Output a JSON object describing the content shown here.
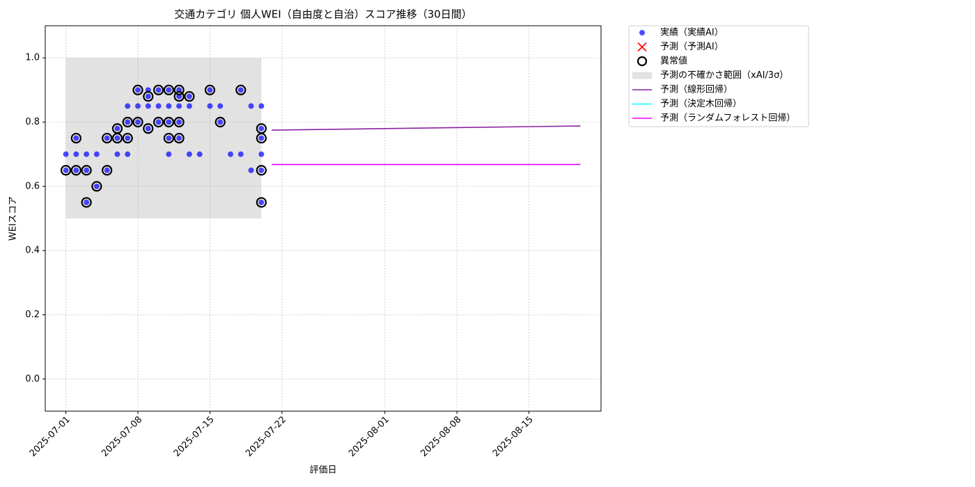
{
  "chart_data": {
    "type": "scatter",
    "title": "交通カテゴリ 個人WEI（自由度と自治）スコア推移（30日間）",
    "x_label": "評価日",
    "y_label": "WEIスコア",
    "xlim": [
      "2025-06-29",
      "2025-08-22"
    ],
    "ylim": [
      -0.1,
      1.1
    ],
    "xticks": [
      "2025-07-01",
      "2025-07-08",
      "2025-07-15",
      "2025-07-22",
      "2025-08-01",
      "2025-08-08",
      "2025-08-15"
    ],
    "yticks": [
      {
        "value": 0,
        "label": "0.0"
      },
      0.2,
      0.4,
      0.6,
      0.8,
      {
        "value": 1,
        "label": "1.0"
      }
    ],
    "grid": true,
    "legend": "outside upper right",
    "series": [
      {
        "name": "実績（実績AI）",
        "type": "scatter",
        "marker": "dot",
        "color": "#0000ff",
        "x": [
          "2025-07-01",
          "2025-07-01",
          "2025-07-02",
          "2025-07-02",
          "2025-07-02",
          "2025-07-03",
          "2025-07-03",
          "2025-07-03",
          "2025-07-04",
          "2025-07-04",
          "2025-07-05",
          "2025-07-05",
          "2025-07-06",
          "2025-07-06",
          "2025-07-06",
          "2025-07-07",
          "2025-07-07",
          "2025-07-07",
          "2025-07-07",
          "2025-07-08",
          "2025-07-08",
          "2025-07-08",
          "2025-07-09",
          "2025-07-09",
          "2025-07-09",
          "2025-07-09",
          "2025-07-10",
          "2025-07-10",
          "2025-07-10",
          "2025-07-11",
          "2025-07-11",
          "2025-07-11",
          "2025-07-11",
          "2025-07-11",
          "2025-07-12",
          "2025-07-12",
          "2025-07-12",
          "2025-07-12",
          "2025-07-12",
          "2025-07-13",
          "2025-07-13",
          "2025-07-13",
          "2025-07-14",
          "2025-07-15",
          "2025-07-15",
          "2025-07-16",
          "2025-07-16",
          "2025-07-17",
          "2025-07-18",
          "2025-07-18",
          "2025-07-19",
          "2025-07-19",
          "2025-07-20",
          "2025-07-20",
          "2025-07-20",
          "2025-07-20",
          "2025-07-20",
          "2025-07-20"
        ],
        "values": [
          0.7,
          0.65,
          0.75,
          0.7,
          0.65,
          0.7,
          0.65,
          0.55,
          0.7,
          0.6,
          0.65,
          0.75,
          0.7,
          0.75,
          0.78,
          0.85,
          0.8,
          0.7,
          0.75,
          0.85,
          0.9,
          0.8,
          0.88,
          0.78,
          0.85,
          0.9,
          0.9,
          0.85,
          0.8,
          0.9,
          0.8,
          0.85,
          0.75,
          0.7,
          0.8,
          0.75,
          0.88,
          0.9,
          0.85,
          0.85,
          0.88,
          0.7,
          0.7,
          0.9,
          0.85,
          0.85,
          0.8,
          0.7,
          0.9,
          0.7,
          0.85,
          0.65,
          0.85,
          0.7,
          0.75,
          0.65,
          0.55,
          0.78
        ]
      },
      {
        "name": "予測（予測AI）",
        "type": "scatter",
        "marker": "x",
        "color": "#ff0000",
        "x": [],
        "values": []
      },
      {
        "name": "異常値",
        "type": "scatter",
        "marker": "ring",
        "color": "#000000",
        "x": [
          "2025-07-01",
          "2025-07-02",
          "2025-07-02",
          "2025-07-03",
          "2025-07-03",
          "2025-07-04",
          "2025-07-05",
          "2025-07-05",
          "2025-07-06",
          "2025-07-06",
          "2025-07-07",
          "2025-07-07",
          "2025-07-08",
          "2025-07-08",
          "2025-07-09",
          "2025-07-09",
          "2025-07-10",
          "2025-07-10",
          "2025-07-11",
          "2025-07-11",
          "2025-07-11",
          "2025-07-12",
          "2025-07-12",
          "2025-07-12",
          "2025-07-12",
          "2025-07-13",
          "2025-07-15",
          "2025-07-16",
          "2025-07-18",
          "2025-07-20",
          "2025-07-20",
          "2025-07-20",
          "2025-07-20"
        ],
        "values": [
          0.65,
          0.75,
          0.65,
          0.65,
          0.55,
          0.6,
          0.65,
          0.75,
          0.75,
          0.78,
          0.8,
          0.75,
          0.9,
          0.8,
          0.88,
          0.78,
          0.9,
          0.8,
          0.9,
          0.8,
          0.75,
          0.8,
          0.75,
          0.88,
          0.9,
          0.88,
          0.9,
          0.8,
          0.9,
          0.65,
          0.75,
          0.78,
          0.55
        ]
      },
      {
        "name": "予測の不確かさ範囲（xAI/3σ）",
        "type": "band",
        "color": "#b4b4b4",
        "x": [
          "2025-07-01",
          "2025-07-20"
        ],
        "values": [
          1.0,
          1.0
        ],
        "lower": [
          0.5,
          0.5
        ]
      },
      {
        "name": "予測（線形回帰）",
        "type": "line",
        "color": "#8b1fa0",
        "x": [
          "2025-07-21",
          "2025-08-20"
        ],
        "values": [
          0.775,
          0.788
        ]
      },
      {
        "name": "予測（決定木回帰）",
        "type": "line",
        "color": "#00ffff",
        "x": [
          "2025-07-21",
          "2025-08-20"
        ],
        "values": [
          0.668,
          0.668
        ]
      },
      {
        "name": "予測（ランダムフォレスト回帰）",
        "type": "line",
        "color": "#ff00ff",
        "x": [
          "2025-07-21",
          "2025-08-20"
        ],
        "values": [
          0.668,
          0.668
        ]
      }
    ]
  }
}
